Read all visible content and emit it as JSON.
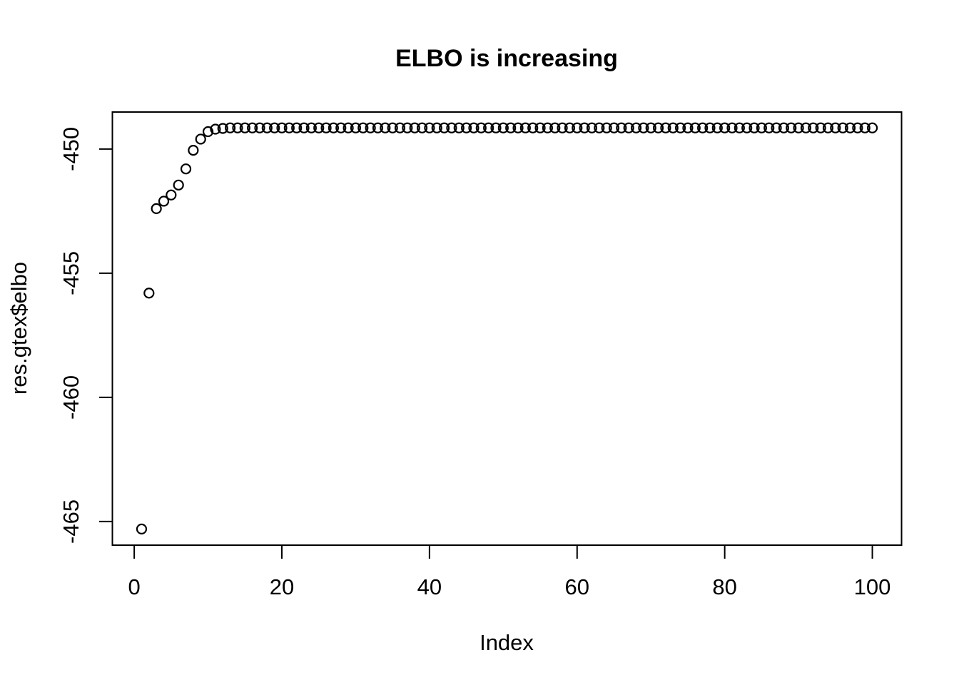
{
  "page": {
    "background_color": "#ffffff",
    "foreground_color": "#000000"
  },
  "chart_data": {
    "type": "scatter",
    "title": "ELBO is increasing",
    "xlabel": "Index",
    "ylabel": "res.gtex$elbo",
    "point_style": "open-circle",
    "point_color": "#000000",
    "grid": false,
    "x_start": 1,
    "x_step": 1,
    "xlim": [
      -2.96,
      103.96
    ],
    "ylim": [
      -465.95,
      -448.51
    ],
    "xticks": [
      0,
      20,
      40,
      60,
      80,
      100
    ],
    "yticks": [
      -465,
      -460,
      -455,
      -450
    ],
    "values": [
      -465.3,
      -455.8,
      -452.4,
      -452.1,
      -451.85,
      -451.45,
      -450.8,
      -450.05,
      -449.6,
      -449.3,
      -449.2,
      -449.17,
      -449.15,
      -449.15,
      -449.15,
      -449.15,
      -449.15,
      -449.15,
      -449.15,
      -449.15,
      -449.15,
      -449.15,
      -449.15,
      -449.15,
      -449.15,
      -449.15,
      -449.15,
      -449.15,
      -449.15,
      -449.15,
      -449.15,
      -449.15,
      -449.15,
      -449.15,
      -449.15,
      -449.15,
      -449.15,
      -449.15,
      -449.15,
      -449.15,
      -449.15,
      -449.15,
      -449.15,
      -449.15,
      -449.15,
      -449.15,
      -449.15,
      -449.15,
      -449.15,
      -449.15,
      -449.15,
      -449.15,
      -449.15,
      -449.15,
      -449.15,
      -449.15,
      -449.15,
      -449.15,
      -449.15,
      -449.15,
      -449.15,
      -449.15,
      -449.15,
      -449.15,
      -449.15,
      -449.15,
      -449.15,
      -449.15,
      -449.15,
      -449.15,
      -449.15,
      -449.15,
      -449.15,
      -449.15,
      -449.15,
      -449.15,
      -449.15,
      -449.15,
      -449.15,
      -449.15,
      -449.15,
      -449.15,
      -449.15,
      -449.15,
      -449.15,
      -449.15,
      -449.15,
      -449.15,
      -449.15,
      -449.15,
      -449.15,
      -449.15,
      -449.15,
      -449.15,
      -449.15,
      -449.15,
      -449.15,
      -449.15,
      -449.15,
      -449.15
    ]
  }
}
